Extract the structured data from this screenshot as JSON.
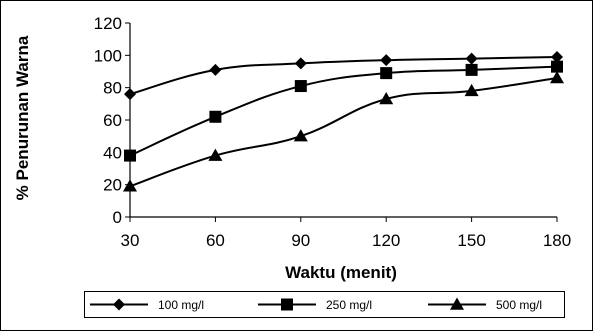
{
  "chart_data": {
    "type": "line",
    "title": "",
    "xlabel": "Waktu (menit)",
    "ylabel": "% Penurunan Warna",
    "x": [
      30,
      60,
      90,
      120,
      150,
      180
    ],
    "xlim": [
      30,
      180
    ],
    "ylim": [
      0,
      120
    ],
    "x_ticks": [
      "30",
      "60",
      "90",
      "120",
      "150",
      "180"
    ],
    "y_ticks": [
      "0",
      "20",
      "40",
      "60",
      "80",
      "100",
      "120"
    ],
    "grid": false,
    "legend_position": "bottom",
    "series": [
      {
        "name": "100 mg/l",
        "marker": "diamond",
        "color": "#000000",
        "values": [
          76,
          91,
          95,
          97,
          98,
          99
        ]
      },
      {
        "name": "250 mg/l",
        "marker": "square",
        "color": "#000000",
        "values": [
          38,
          62,
          81,
          89,
          91,
          93
        ]
      },
      {
        "name": "500 mg/l",
        "marker": "triangle",
        "color": "#000000",
        "values": [
          19,
          38,
          50,
          73,
          78,
          86
        ]
      }
    ]
  }
}
